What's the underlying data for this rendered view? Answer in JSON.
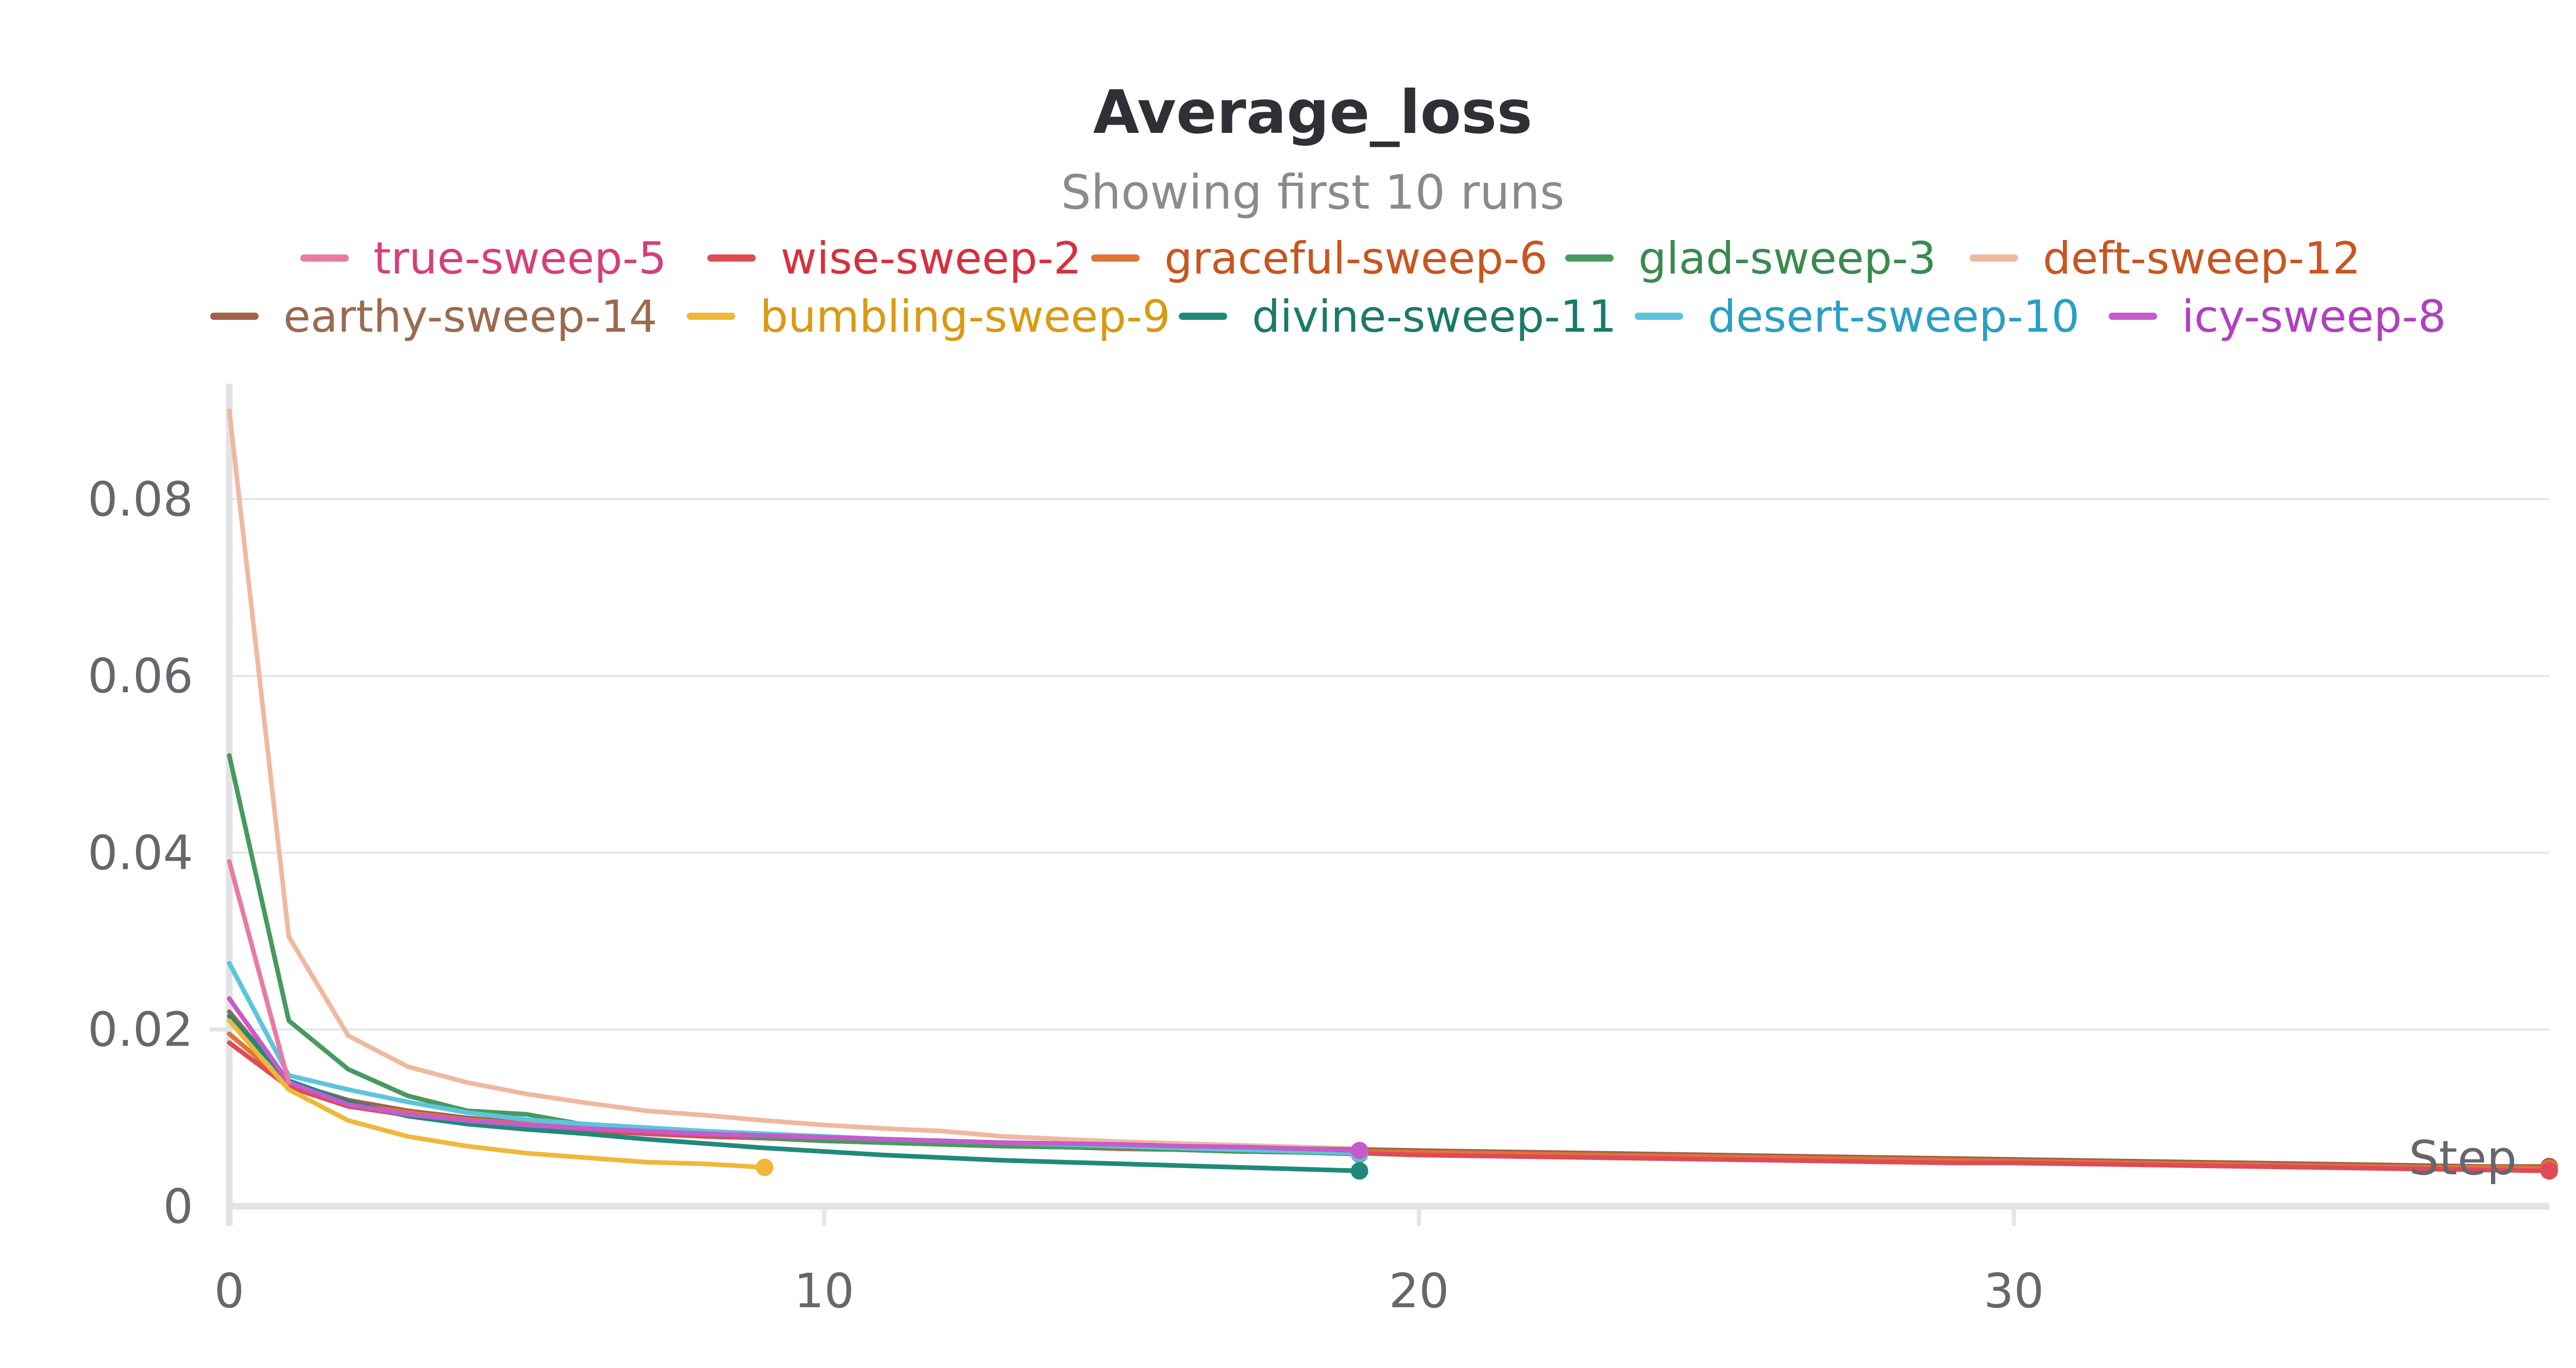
{
  "chart_data": {
    "type": "line",
    "title": "Average_loss",
    "subtitle": "Showing first 10 runs",
    "xlabel": "Step",
    "ylabel": "",
    "xlim": [
      0,
      39
    ],
    "ylim": [
      0,
      0.092
    ],
    "x_ticks": [
      0,
      10,
      20,
      30
    ],
    "y_ticks": [
      0,
      0.02,
      0.04,
      0.06,
      0.08
    ],
    "x_tick_labels": [
      "0",
      "10",
      "20",
      "30"
    ],
    "y_tick_labels": [
      "0",
      "0.02",
      "0.04",
      "0.06",
      "0.08"
    ],
    "grid": true,
    "legend_position": "top",
    "series": [
      {
        "name": "true-sweep-5",
        "color": "#e87ba4",
        "text_color": "#d63f7a",
        "x": [
          0,
          1
        ],
        "y": [
          0.039,
          0.014
        ]
      },
      {
        "name": "wise-sweep-2",
        "color": "#df4b55",
        "text_color": "#d6303e",
        "x": [
          0,
          1,
          2,
          3,
          4,
          5,
          6,
          7,
          8,
          9,
          10,
          11,
          12,
          13,
          14,
          15,
          16,
          17,
          18,
          19,
          20,
          21,
          22,
          23,
          24,
          25,
          26,
          27,
          28,
          29,
          30,
          31,
          32,
          33,
          34,
          35,
          36,
          37,
          38,
          39
        ],
        "y": [
          0.0185,
          0.0135,
          0.0113,
          0.0103,
          0.0095,
          0.009,
          0.0086,
          0.0082,
          0.0079,
          0.0077,
          0.0074,
          0.0072,
          0.007,
          0.0068,
          0.0067,
          0.0065,
          0.0064,
          0.0062,
          0.0061,
          0.006,
          0.0058,
          0.0057,
          0.0056,
          0.0055,
          0.0054,
          0.0053,
          0.0052,
          0.0051,
          0.005,
          0.0049,
          0.0049,
          0.0048,
          0.0047,
          0.0046,
          0.0045,
          0.0044,
          0.0043,
          0.0042,
          0.0041,
          0.004
        ]
      },
      {
        "name": "graceful-sweep-6",
        "color": "#e0733a",
        "text_color": "#c9551f",
        "x": [
          0,
          1,
          2,
          3,
          4,
          5,
          6,
          7,
          8,
          9,
          10,
          11,
          12,
          13,
          14,
          15,
          16,
          17,
          18,
          19,
          20,
          21,
          22,
          23,
          24,
          25,
          26,
          27,
          28,
          29,
          30,
          31,
          32,
          33,
          34,
          35,
          36,
          37,
          38,
          39
        ],
        "y": [
          0.0195,
          0.0138,
          0.0116,
          0.0106,
          0.0098,
          0.0093,
          0.0088,
          0.0084,
          0.0081,
          0.0078,
          0.0076,
          0.0074,
          0.0072,
          0.007,
          0.0069,
          0.0067,
          0.0066,
          0.0065,
          0.0063,
          0.0062,
          0.0061,
          0.006,
          0.0059,
          0.0058,
          0.0057,
          0.0056,
          0.0055,
          0.0054,
          0.0053,
          0.0052,
          0.0051,
          0.005,
          0.0049,
          0.0048,
          0.0047,
          0.0046,
          0.0045,
          0.0044,
          0.0044,
          0.0043
        ]
      },
      {
        "name": "glad-sweep-3",
        "color": "#479a5f",
        "text_color": "#3a8a50",
        "x": [
          0,
          1,
          2,
          3,
          4,
          5,
          6,
          7,
          8,
          9,
          10,
          11,
          12,
          13,
          14,
          15,
          16,
          17,
          18,
          19
        ],
        "y": [
          0.051,
          0.021,
          0.0155,
          0.0125,
          0.0108,
          0.0104,
          0.0092,
          0.0086,
          0.0082,
          0.0078,
          0.0074,
          0.0072,
          0.007,
          0.0068,
          0.0067,
          0.0066,
          0.0064,
          0.0062,
          0.0061,
          0.0059
        ]
      },
      {
        "name": "deft-sweep-12",
        "color": "#f0b8a0",
        "text_color": "#c9551f",
        "x": [
          0,
          1,
          2,
          3,
          4,
          5,
          6,
          7,
          8,
          9,
          10,
          11,
          12,
          13,
          14,
          15,
          16,
          17,
          18,
          19,
          20,
          21,
          22,
          23,
          24,
          25,
          26,
          27,
          28,
          29,
          30,
          31,
          32,
          33,
          34,
          35,
          36,
          37,
          38,
          39
        ],
        "y": [
          0.09,
          0.0305,
          0.0193,
          0.0158,
          0.014,
          0.0127,
          0.0117,
          0.0108,
          0.0103,
          0.0097,
          0.0092,
          0.0088,
          0.0085,
          0.0079,
          0.0076,
          0.0073,
          0.0071,
          0.0069,
          0.0067,
          0.0065,
          0.0063,
          0.0062,
          0.006,
          0.0059,
          0.0058,
          0.0057,
          0.0055,
          0.0054,
          0.0053,
          0.0052,
          0.0051,
          0.005,
          0.0049,
          0.0048,
          0.0047,
          0.0046,
          0.0045,
          0.0044,
          0.0043,
          0.0042
        ]
      },
      {
        "name": "earthy-sweep-14",
        "color": "#a0624a",
        "text_color": "#9a6a50",
        "x": [
          0,
          1,
          2,
          3,
          4,
          5,
          6,
          7,
          8,
          9,
          10,
          11,
          12,
          13,
          14,
          15,
          16,
          17,
          18,
          19,
          20,
          21,
          22,
          23,
          24,
          25,
          26,
          27,
          28,
          29,
          30,
          31,
          32,
          33,
          34,
          35,
          36,
          37,
          38,
          39
        ],
        "y": [
          0.022,
          0.014,
          0.012,
          0.0108,
          0.01,
          0.0094,
          0.0089,
          0.0085,
          0.0082,
          0.0079,
          0.0077,
          0.0075,
          0.0073,
          0.0071,
          0.007,
          0.0069,
          0.0067,
          0.0066,
          0.0065,
          0.0064,
          0.0063,
          0.0062,
          0.0061,
          0.006,
          0.0059,
          0.0058,
          0.0057,
          0.0056,
          0.0055,
          0.0054,
          0.0053,
          0.0052,
          0.0051,
          0.005,
          0.0049,
          0.0048,
          0.0047,
          0.0046,
          0.0045,
          0.0045
        ]
      },
      {
        "name": "bumbling-sweep-9",
        "color": "#efb83a",
        "text_color": "#d99a12",
        "x": [
          0,
          1,
          2,
          3,
          4,
          5,
          6,
          7,
          8,
          9
        ],
        "y": [
          0.021,
          0.0132,
          0.0097,
          0.0079,
          0.0068,
          0.006,
          0.0055,
          0.005,
          0.0048,
          0.0044
        ]
      },
      {
        "name": "divine-sweep-11",
        "color": "#1f8a7a",
        "text_color": "#1a7a6a",
        "x": [
          0,
          1,
          2,
          3,
          4,
          5,
          6,
          7,
          8,
          9,
          10,
          11,
          12,
          13,
          14,
          15,
          16,
          17,
          18,
          19
        ],
        "y": [
          0.0215,
          0.0142,
          0.0118,
          0.0102,
          0.0093,
          0.0087,
          0.0082,
          0.0076,
          0.0071,
          0.0066,
          0.0062,
          0.0058,
          0.0055,
          0.0052,
          0.005,
          0.0048,
          0.0046,
          0.0044,
          0.0042,
          0.004
        ]
      },
      {
        "name": "desert-sweep-10",
        "color": "#5ec4dc",
        "text_color": "#2a9fc4",
        "x": [
          0,
          1,
          2,
          3,
          4,
          5,
          6,
          7,
          8,
          9,
          10,
          11,
          12,
          13,
          14,
          15,
          16,
          17,
          18,
          19
        ],
        "y": [
          0.0275,
          0.0148,
          0.0132,
          0.0118,
          0.0106,
          0.0098,
          0.0093,
          0.0089,
          0.0085,
          0.0082,
          0.0079,
          0.0076,
          0.0074,
          0.0072,
          0.007,
          0.0068,
          0.0066,
          0.0064,
          0.0062,
          0.006
        ]
      },
      {
        "name": "icy-sweep-8",
        "color": "#c45ccc",
        "text_color": "#b040c0",
        "x": [
          0,
          1,
          2,
          3,
          4,
          5,
          6,
          7,
          8,
          9,
          10,
          11,
          12,
          13,
          14,
          15,
          16,
          17,
          18,
          19
        ],
        "y": [
          0.0235,
          0.014,
          0.0115,
          0.0104,
          0.0097,
          0.0092,
          0.0088,
          0.0085,
          0.0082,
          0.008,
          0.0078,
          0.0076,
          0.0074,
          0.0072,
          0.0071,
          0.007,
          0.0068,
          0.0067,
          0.0065,
          0.0063
        ]
      }
    ]
  }
}
